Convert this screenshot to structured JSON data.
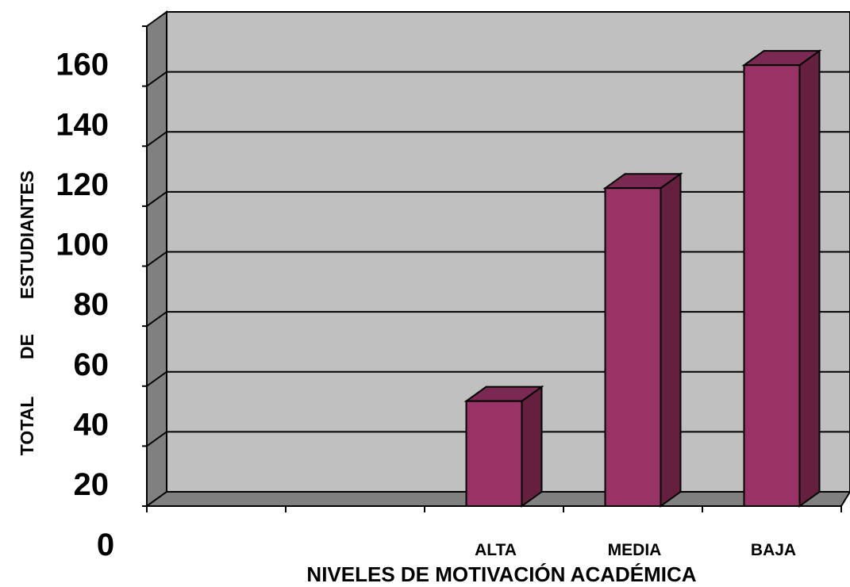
{
  "chart_data": {
    "type": "bar",
    "categories": [
      "ALTA",
      "MEDIA",
      "BAJA"
    ],
    "values": [
      35,
      106,
      147
    ],
    "ylabel_words": [
      "TOTAL",
      "DE",
      "ESTUDIANTES"
    ],
    "xlabel": "NIVELES DE MOTIVACIÓN ACADÉMICA",
    "ylim": [
      0,
      160
    ],
    "yticks": [
      "0",
      "20",
      "40",
      "60",
      "80",
      "100",
      "120",
      "140",
      "160"
    ],
    "grid": true,
    "bar_color": "#993366",
    "bar_side_color": "#66203f",
    "bar_top_color": "#7a2a52",
    "wall_color": "#c0c0c0",
    "side_wall_color": "#808080",
    "floor_color": "#808080"
  }
}
